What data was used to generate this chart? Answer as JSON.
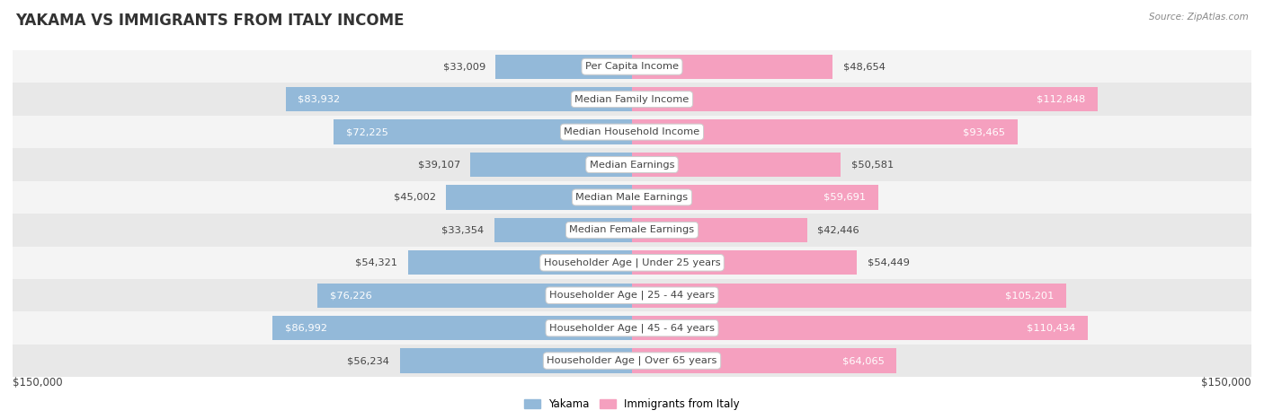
{
  "title": "YAKAMA VS IMMIGRANTS FROM ITALY INCOME",
  "source": "Source: ZipAtlas.com",
  "categories": [
    "Per Capita Income",
    "Median Family Income",
    "Median Household Income",
    "Median Earnings",
    "Median Male Earnings",
    "Median Female Earnings",
    "Householder Age | Under 25 years",
    "Householder Age | 25 - 44 years",
    "Householder Age | 45 - 64 years",
    "Householder Age | Over 65 years"
  ],
  "yakama_values": [
    33009,
    83932,
    72225,
    39107,
    45002,
    33354,
    54321,
    76226,
    86992,
    56234
  ],
  "italy_values": [
    48654,
    112848,
    93465,
    50581,
    59691,
    42446,
    54449,
    105201,
    110434,
    64065
  ],
  "yakama_color": "#93b9d9",
  "italy_color": "#f5a0bf",
  "row_colors": [
    "#f4f4f4",
    "#e8e8e8"
  ],
  "max_value": 150000,
  "xlabel_left": "$150,000",
  "xlabel_right": "$150,000",
  "legend_yakama": "Yakama",
  "legend_italy": "Immigrants from Italy",
  "title_fontsize": 12,
  "value_fontsize": 8.2,
  "cat_fontsize": 8.2,
  "source_fontsize": 7.5,
  "legend_fontsize": 8.5
}
